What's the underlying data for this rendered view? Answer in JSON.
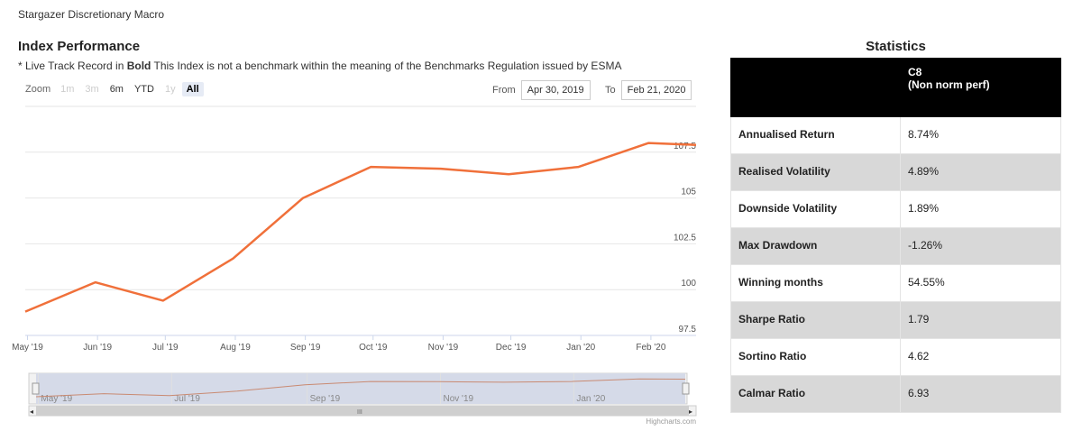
{
  "page_title": "Stargazer Discretionary Macro",
  "section_title": "Index Performance",
  "note": {
    "prefix": "* Live Track Record in ",
    "bold": "Bold",
    "suffix": " This Index is not a benchmark within the meaning of the Benchmarks Regulation issued by ESMA"
  },
  "zoom": {
    "label": "Zoom",
    "buttons": [
      {
        "label": "1m",
        "state": "disabled"
      },
      {
        "label": "3m",
        "state": "disabled"
      },
      {
        "label": "6m",
        "state": "normal"
      },
      {
        "label": "YTD",
        "state": "normal"
      },
      {
        "label": "1y",
        "state": "disabled"
      },
      {
        "label": "All",
        "state": "active"
      }
    ]
  },
  "range": {
    "from_label": "From",
    "from_value": "Apr 30, 2019",
    "to_label": "To",
    "to_value": "Feb 21, 2020"
  },
  "credit": "Highcharts.com",
  "statistics": {
    "title": "Statistics",
    "column_header": "C8",
    "column_subheader": "(Non norm perf)",
    "rows": [
      {
        "label": "Annualised Return",
        "value": "8.74%"
      },
      {
        "label": "Realised Volatility",
        "value": "4.89%"
      },
      {
        "label": "Downside Volatility",
        "value": "1.89%"
      },
      {
        "label": "Max Drawdown",
        "value": "-1.26%"
      },
      {
        "label": "Winning months",
        "value": "54.55%"
      },
      {
        "label": "Sharpe Ratio",
        "value": "1.79"
      },
      {
        "label": "Sortino Ratio",
        "value": "4.62"
      },
      {
        "label": "Calmar Ratio",
        "value": "6.93"
      }
    ]
  },
  "chart_data": {
    "type": "line",
    "color": "#f0703a",
    "grid": true,
    "ylim": [
      97.5,
      110
    ],
    "y_ticks": [
      "97.5",
      "100",
      "102.5",
      "105",
      "107.5"
    ],
    "x_ticks": [
      "May '19",
      "Jun '19",
      "Jul '19",
      "Aug '19",
      "Sep '19",
      "Oct '19",
      "Nov '19",
      "Dec '19",
      "Jan '20",
      "Feb '20"
    ],
    "navigator_ticks": [
      "May '19",
      "Jul '19",
      "Sep '19",
      "Nov '19",
      "Jan '20"
    ],
    "series": [
      {
        "x": [
          "Apr 30, 2019",
          "May 31, 2019",
          "Jun 30, 2019",
          "Jul 31, 2019",
          "Aug 31, 2019",
          "Sep 30, 2019",
          "Oct 31, 2019",
          "Nov 30, 2019",
          "Dec 31, 2019",
          "Jan 31, 2020",
          "Feb 21, 2020"
        ],
        "values": [
          98.8,
          100.4,
          99.4,
          101.7,
          105.0,
          106.7,
          106.6,
          106.3,
          106.7,
          108.0,
          107.9
        ]
      }
    ]
  }
}
